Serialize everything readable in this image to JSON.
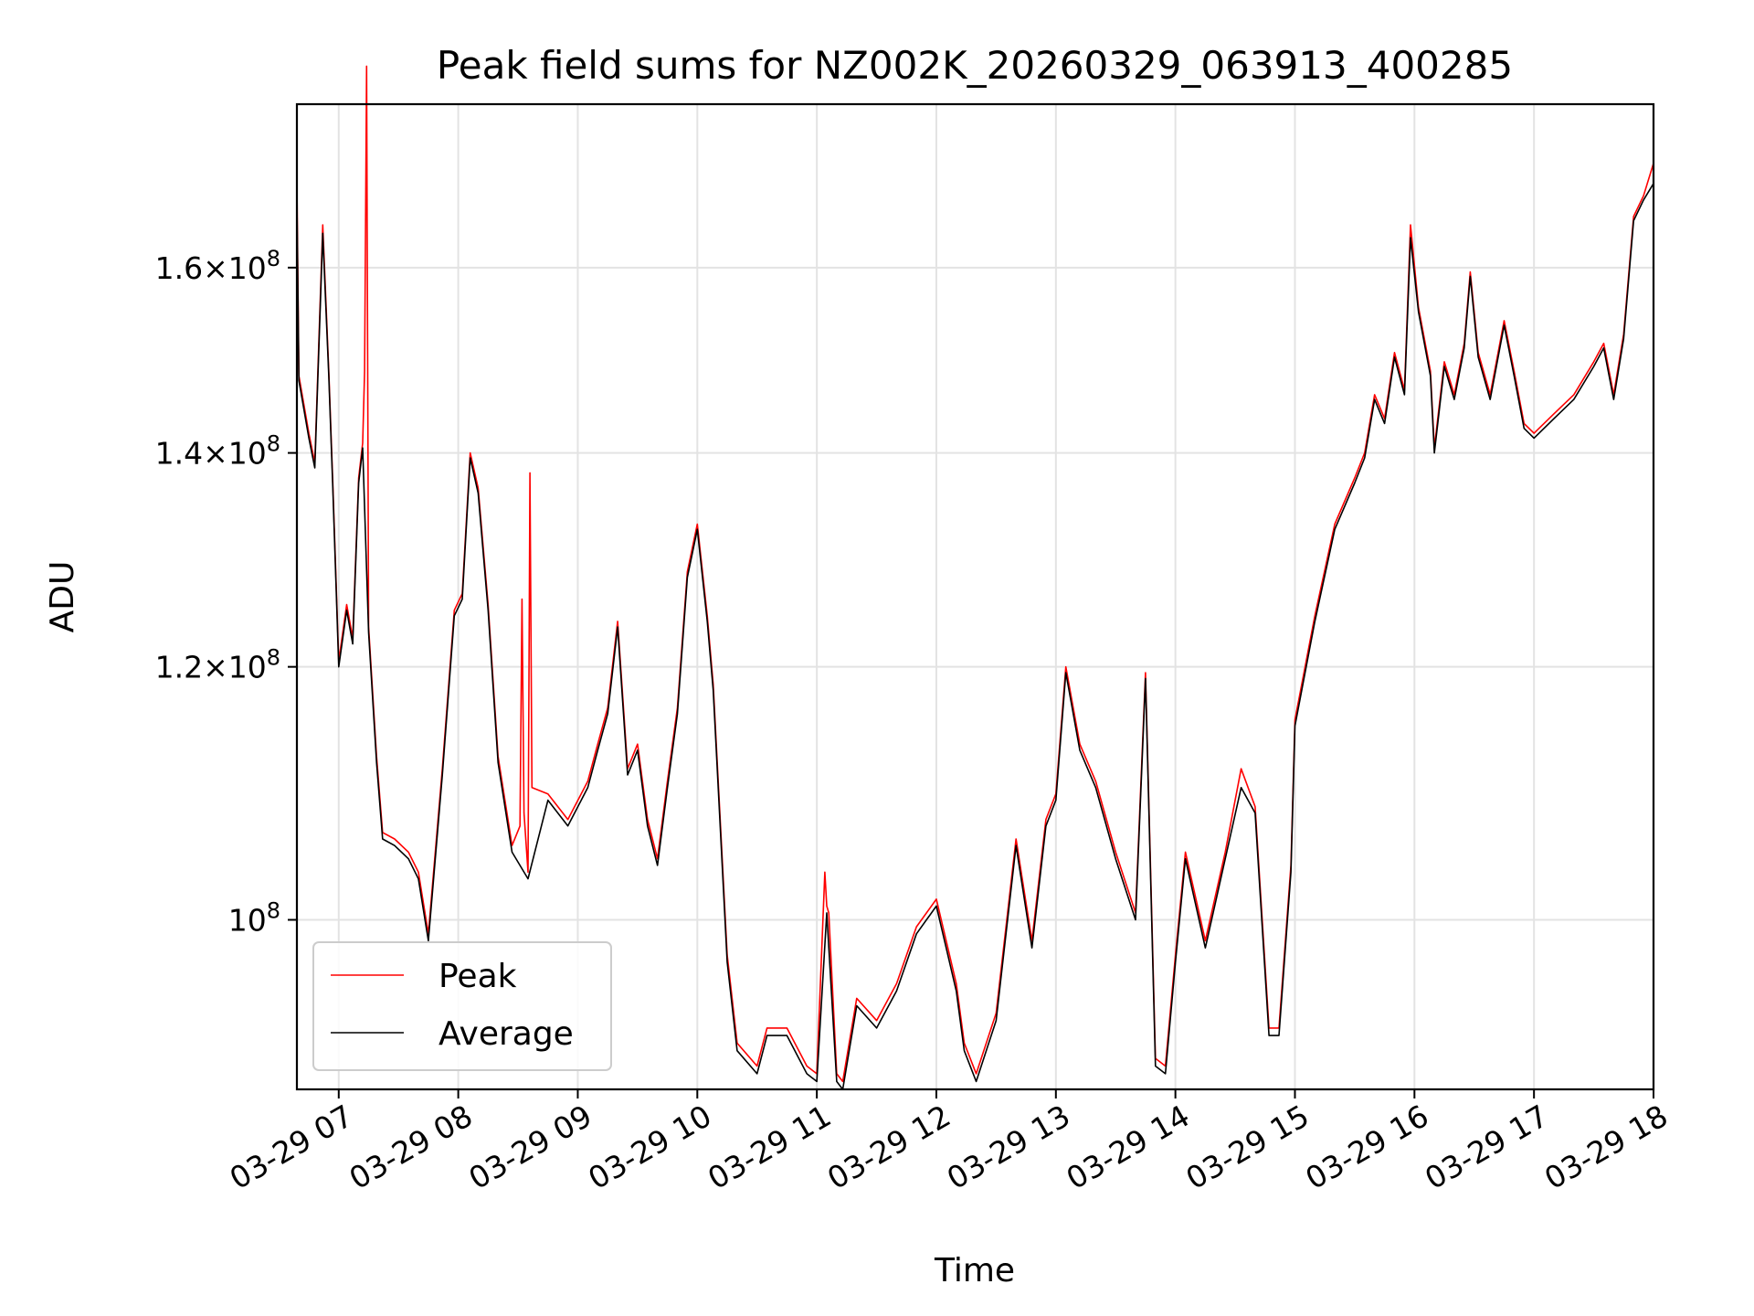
{
  "chart_data": {
    "type": "line",
    "title": "Peak field sums for NZ002K_20260329_063913_400285",
    "xlabel": "Time",
    "ylabel": "ADU",
    "y_scale": "log",
    "ylim": [
      88500000,
      180000000
    ],
    "xlim": [
      "2026-03-29 06:39",
      "2026-03-29 18:00"
    ],
    "grid": true,
    "legend_position": "lower-left",
    "x_ticks": [
      {
        "t": "2026-03-29 07:00",
        "label": "03-29 07"
      },
      {
        "t": "2026-03-29 08:00",
        "label": "03-29 08"
      },
      {
        "t": "2026-03-29 09:00",
        "label": "03-29 09"
      },
      {
        "t": "2026-03-29 10:00",
        "label": "03-29 10"
      },
      {
        "t": "2026-03-29 11:00",
        "label": "03-29 11"
      },
      {
        "t": "2026-03-29 12:00",
        "label": "03-29 12"
      },
      {
        "t": "2026-03-29 13:00",
        "label": "03-29 13"
      },
      {
        "t": "2026-03-29 14:00",
        "label": "03-29 14"
      },
      {
        "t": "2026-03-29 15:00",
        "label": "03-29 15"
      },
      {
        "t": "2026-03-29 16:00",
        "label": "03-29 16"
      },
      {
        "t": "2026-03-29 17:00",
        "label": "03-29 17"
      },
      {
        "t": "2026-03-29 18:00",
        "label": "03-29 18"
      }
    ],
    "y_ticks": [
      {
        "value": 100000000,
        "mant": "",
        "exp": "8"
      },
      {
        "value": 120000000,
        "mant": "1.2",
        "exp": "8"
      },
      {
        "value": 140000000,
        "mant": "1.4",
        "exp": "8"
      },
      {
        "value": 160000000,
        "mant": "1.6",
        "exp": "8"
      }
    ],
    "colors": {
      "peak": "#ff0000",
      "average": "#000000"
    },
    "series": [
      {
        "name": "Average",
        "x": [
          "2026-03-29 06:39",
          "2026-03-29 06:40",
          "2026-03-29 06:45",
          "2026-03-29 06:48",
          "2026-03-29 06:52",
          "2026-03-29 06:55",
          "2026-03-29 06:57",
          "2026-03-29 07:00",
          "2026-03-29 07:04",
          "2026-03-29 07:07",
          "2026-03-29 07:10",
          "2026-03-29 07:12",
          "2026-03-29 07:15",
          "2026-03-29 07:19",
          "2026-03-29 07:22",
          "2026-03-29 07:28",
          "2026-03-29 07:35",
          "2026-03-29 07:40",
          "2026-03-29 07:45",
          "2026-03-29 07:52",
          "2026-03-29 07:58",
          "2026-03-29 08:02",
          "2026-03-29 08:06",
          "2026-03-29 08:10",
          "2026-03-29 08:15",
          "2026-03-29 08:20",
          "2026-03-29 08:27",
          "2026-03-29 08:35",
          "2026-03-29 08:45",
          "2026-03-29 08:55",
          "2026-03-29 09:05",
          "2026-03-29 09:10",
          "2026-03-29 09:15",
          "2026-03-29 09:20",
          "2026-03-29 09:25",
          "2026-03-29 09:30",
          "2026-03-29 09:35",
          "2026-03-29 09:40",
          "2026-03-29 09:45",
          "2026-03-29 09:50",
          "2026-03-29 09:55",
          "2026-03-29 10:00",
          "2026-03-29 10:05",
          "2026-03-29 10:08",
          "2026-03-29 10:15",
          "2026-03-29 10:20",
          "2026-03-29 10:30",
          "2026-03-29 10:35",
          "2026-03-29 10:45",
          "2026-03-29 10:55",
          "2026-03-29 11:00",
          "2026-03-29 11:05",
          "2026-03-29 11:10",
          "2026-03-29 11:13",
          "2026-03-29 11:20",
          "2026-03-29 11:30",
          "2026-03-29 11:40",
          "2026-03-29 11:50",
          "2026-03-29 12:00",
          "2026-03-29 12:10",
          "2026-03-29 12:14",
          "2026-03-29 12:20",
          "2026-03-29 12:30",
          "2026-03-29 12:40",
          "2026-03-29 12:48",
          "2026-03-29 12:55",
          "2026-03-29 13:00",
          "2026-03-29 13:05",
          "2026-03-29 13:12",
          "2026-03-29 13:20",
          "2026-03-29 13:30",
          "2026-03-29 13:40",
          "2026-03-29 13:45",
          "2026-03-29 13:50",
          "2026-03-29 13:55",
          "2026-03-29 14:00",
          "2026-03-29 14:05",
          "2026-03-29 14:15",
          "2026-03-29 14:25",
          "2026-03-29 14:33",
          "2026-03-29 14:40",
          "2026-03-29 14:47",
          "2026-03-29 14:52",
          "2026-03-29 14:58",
          "2026-03-29 15:00",
          "2026-03-29 15:10",
          "2026-03-29 15:20",
          "2026-03-29 15:30",
          "2026-03-29 15:35",
          "2026-03-29 15:40",
          "2026-03-29 15:45",
          "2026-03-29 15:50",
          "2026-03-29 15:55",
          "2026-03-29 15:58",
          "2026-03-29 16:02",
          "2026-03-29 16:08",
          "2026-03-29 16:10",
          "2026-03-29 16:15",
          "2026-03-29 16:20",
          "2026-03-29 16:25",
          "2026-03-29 16:28",
          "2026-03-29 16:32",
          "2026-03-29 16:38",
          "2026-03-29 16:45",
          "2026-03-29 16:50",
          "2026-03-29 16:55",
          "2026-03-29 17:00",
          "2026-03-29 17:10",
          "2026-03-29 17:20",
          "2026-03-29 17:30",
          "2026-03-29 17:35",
          "2026-03-29 17:40",
          "2026-03-29 17:45",
          "2026-03-29 17:50",
          "2026-03-29 17:55",
          "2026-03-29 18:00"
        ],
        "y": [
          168000000,
          147500000,
          141500000,
          138500000,
          164000000,
          148000000,
          136500000,
          120000000,
          125000000,
          122000000,
          137000000,
          140500000,
          123000000,
          112000000,
          106000000,
          105500000,
          104500000,
          103000000,
          98500000,
          111000000,
          124500000,
          126000000,
          139500000,
          136000000,
          125000000,
          112000000,
          105000000,
          103000000,
          109000000,
          107000000,
          110000000,
          113000000,
          116000000,
          123500000,
          111000000,
          113000000,
          107000000,
          104000000,
          110000000,
          116000000,
          128000000,
          132500000,
          124000000,
          118000000,
          97000000,
          91000000,
          89500000,
          92000000,
          92000000,
          89500000,
          89000000,
          100500000,
          89000000,
          88500000,
          94000000,
          92500000,
          95000000,
          99000000,
          101000000,
          95000000,
          91000000,
          89000000,
          93000000,
          105500000,
          98000000,
          107000000,
          109000000,
          119500000,
          113000000,
          110000000,
          104500000,
          100000000,
          119000000,
          90000000,
          89500000,
          97000000,
          104500000,
          98000000,
          104500000,
          110000000,
          108000000,
          92000000,
          92000000,
          103500000,
          115000000,
          124000000,
          132500000,
          137000000,
          139500000,
          145500000,
          143000000,
          150000000,
          146000000,
          163500000,
          155000000,
          148000000,
          140000000,
          149000000,
          145500000,
          151000000,
          159000000,
          150000000,
          145500000,
          153500000,
          148000000,
          142500000,
          141500000,
          143500000,
          145500000,
          149000000,
          151000000,
          145500000,
          152000000,
          165500000,
          168000000,
          170000000
        ]
      },
      {
        "name": "Peak",
        "x": [
          "2026-03-29 06:39",
          "2026-03-29 06:40",
          "2026-03-29 06:45",
          "2026-03-29 06:48",
          "2026-03-29 06:52",
          "2026-03-29 06:55",
          "2026-03-29 06:57",
          "2026-03-29 07:00",
          "2026-03-29 07:04",
          "2026-03-29 07:07",
          "2026-03-29 07:10",
          "2026-03-29 07:12",
          "2026-03-29 07:13",
          "2026-03-29 07:14",
          "2026-03-29 07:15",
          "2026-03-29 07:19",
          "2026-03-29 07:22",
          "2026-03-29 07:28",
          "2026-03-29 07:35",
          "2026-03-29 07:40",
          "2026-03-29 07:45",
          "2026-03-29 07:52",
          "2026-03-29 07:58",
          "2026-03-29 08:02",
          "2026-03-29 08:06",
          "2026-03-29 08:10",
          "2026-03-29 08:15",
          "2026-03-29 08:20",
          "2026-03-29 08:27",
          "2026-03-29 08:31",
          "2026-03-29 08:32",
          "2026-03-29 08:33",
          "2026-03-29 08:35",
          "2026-03-29 08:36",
          "2026-03-29 08:37",
          "2026-03-29 08:45",
          "2026-03-29 08:55",
          "2026-03-29 09:05",
          "2026-03-29 09:10",
          "2026-03-29 09:15",
          "2026-03-29 09:20",
          "2026-03-29 09:25",
          "2026-03-29 09:30",
          "2026-03-29 09:35",
          "2026-03-29 09:40",
          "2026-03-29 09:45",
          "2026-03-29 09:50",
          "2026-03-29 09:55",
          "2026-03-29 10:00",
          "2026-03-29 10:05",
          "2026-03-29 10:08",
          "2026-03-29 10:15",
          "2026-03-29 10:20",
          "2026-03-29 10:30",
          "2026-03-29 10:35",
          "2026-03-29 10:45",
          "2026-03-29 10:55",
          "2026-03-29 11:00",
          "2026-03-29 11:04",
          "2026-03-29 11:05",
          "2026-03-29 11:06",
          "2026-03-29 11:10",
          "2026-03-29 11:13",
          "2026-03-29 11:20",
          "2026-03-29 11:30",
          "2026-03-29 11:40",
          "2026-03-29 11:50",
          "2026-03-29 12:00",
          "2026-03-29 12:10",
          "2026-03-29 12:14",
          "2026-03-29 12:20",
          "2026-03-29 12:30",
          "2026-03-29 12:40",
          "2026-03-29 12:48",
          "2026-03-29 12:55",
          "2026-03-29 13:00",
          "2026-03-29 13:05",
          "2026-03-29 13:12",
          "2026-03-29 13:20",
          "2026-03-29 13:30",
          "2026-03-29 13:40",
          "2026-03-29 13:45",
          "2026-03-29 13:50",
          "2026-03-29 13:55",
          "2026-03-29 14:00",
          "2026-03-29 14:05",
          "2026-03-29 14:15",
          "2026-03-29 14:25",
          "2026-03-29 14:33",
          "2026-03-29 14:40",
          "2026-03-29 14:47",
          "2026-03-29 14:52",
          "2026-03-29 14:58",
          "2026-03-29 15:00",
          "2026-03-29 15:10",
          "2026-03-29 15:20",
          "2026-03-29 15:30",
          "2026-03-29 15:35",
          "2026-03-29 15:40",
          "2026-03-29 15:45",
          "2026-03-29 15:50",
          "2026-03-29 15:55",
          "2026-03-29 15:58",
          "2026-03-29 16:02",
          "2026-03-29 16:08",
          "2026-03-29 16:10",
          "2026-03-29 16:15",
          "2026-03-29 16:20",
          "2026-03-29 16:25",
          "2026-03-29 16:28",
          "2026-03-29 16:32",
          "2026-03-29 16:38",
          "2026-03-29 16:45",
          "2026-03-29 16:50",
          "2026-03-29 16:55",
          "2026-03-29 17:00",
          "2026-03-29 17:10",
          "2026-03-29 17:20",
          "2026-03-29 17:30",
          "2026-03-29 17:35",
          "2026-03-29 17:40",
          "2026-03-29 17:45",
          "2026-03-29 17:50",
          "2026-03-29 17:55",
          "2026-03-29 18:00"
        ],
        "y": [
          170000000,
          148000000,
          142000000,
          139000000,
          165000000,
          148500000,
          137000000,
          120500000,
          125500000,
          122500000,
          137500000,
          141000000,
          148500000,
          185000000,
          123500000,
          112500000,
          106500000,
          106000000,
          105000000,
          103500000,
          99000000,
          111500000,
          125000000,
          126500000,
          140000000,
          136500000,
          125500000,
          112500000,
          105500000,
          107000000,
          126000000,
          108000000,
          103500000,
          138000000,
          110000000,
          109500000,
          107500000,
          110500000,
          113500000,
          116500000,
          124000000,
          111500000,
          113500000,
          107500000,
          104500000,
          110500000,
          116500000,
          128500000,
          133000000,
          124500000,
          118500000,
          97500000,
          91500000,
          90000000,
          92500000,
          92500000,
          90000000,
          89500000,
          103500000,
          101000000,
          100500000,
          89500000,
          89000000,
          94500000,
          93000000,
          95500000,
          99500000,
          101500000,
          95500000,
          91500000,
          89500000,
          93500000,
          106000000,
          98500000,
          107500000,
          109500000,
          120000000,
          113500000,
          110500000,
          105000000,
          100500000,
          119500000,
          90500000,
          90000000,
          97500000,
          105000000,
          98500000,
          105000000,
          111500000,
          108500000,
          92500000,
          92500000,
          104000000,
          115500000,
          124500000,
          133000000,
          137500000,
          140000000,
          146000000,
          143500000,
          150500000,
          146500000,
          165000000,
          155500000,
          148500000,
          140500000,
          149500000,
          146000000,
          151500000,
          159500000,
          150500000,
          146000000,
          154000000,
          148500000,
          143000000,
          142000000,
          144000000,
          146000000,
          149500000,
          151500000,
          146000000,
          152500000,
          166000000,
          168500000,
          172500000
        ]
      }
    ]
  }
}
